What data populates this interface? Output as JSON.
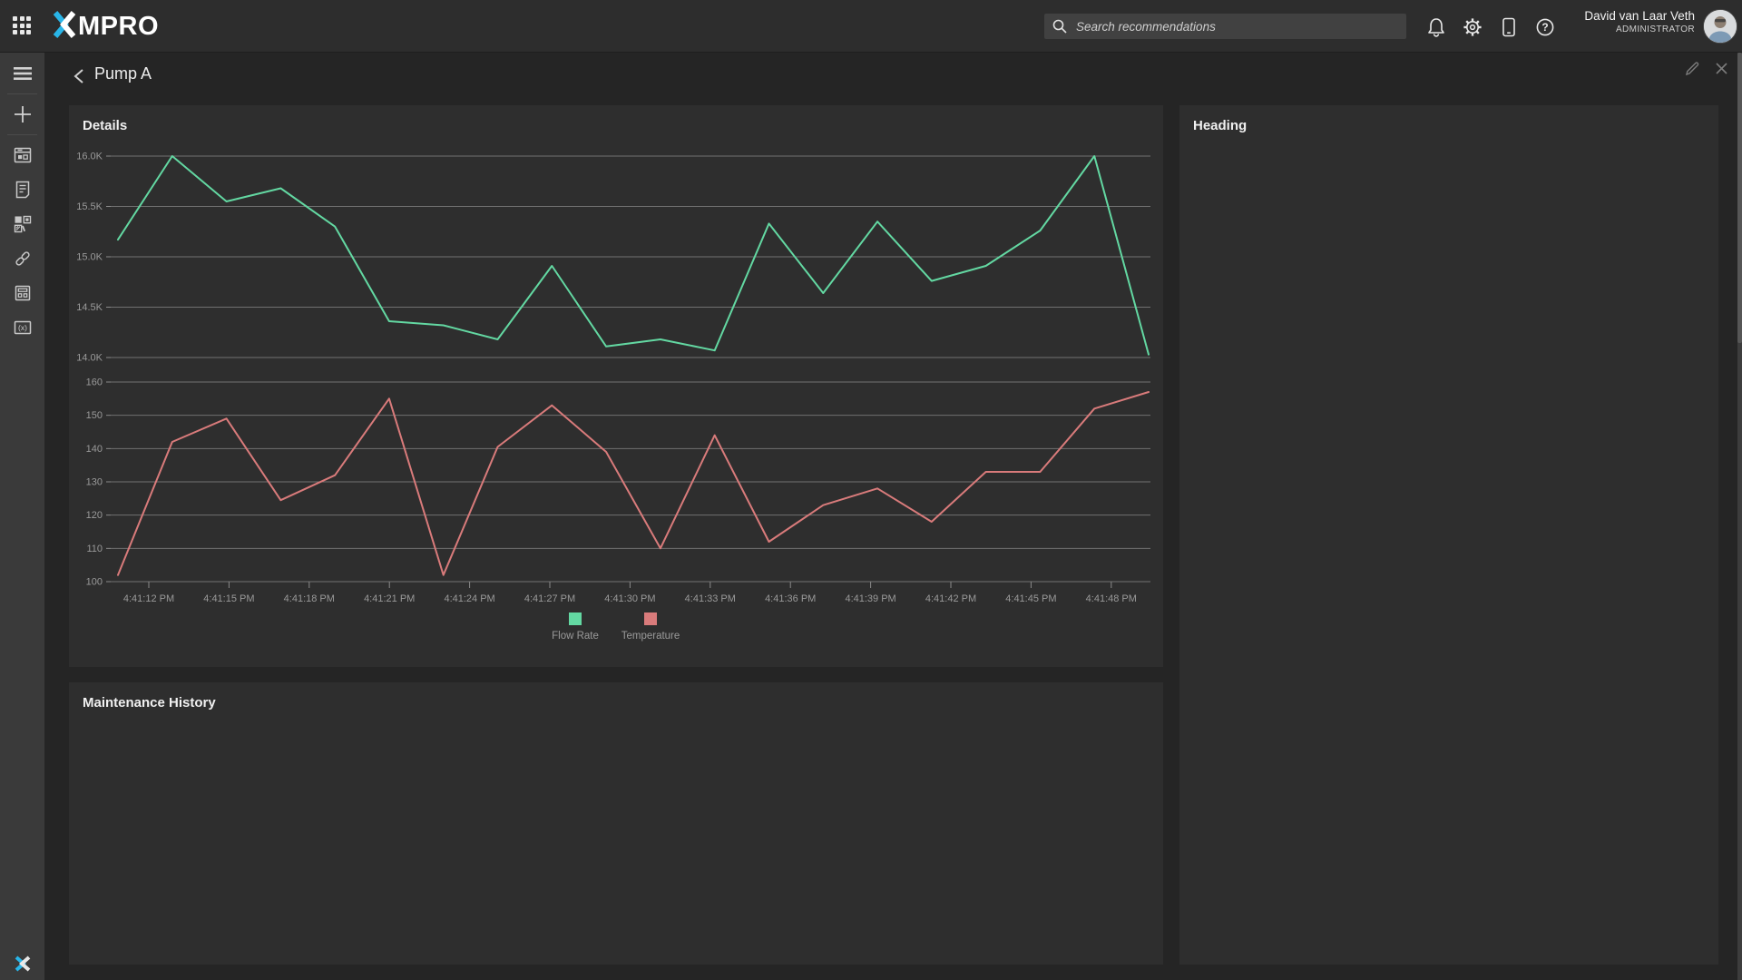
{
  "topbar": {
    "logo_text": "MPRO",
    "search_placeholder": "Search recommendations",
    "user": {
      "name": "David van Laar Veth",
      "role": "ADMINISTRATOR"
    },
    "icons": [
      "apps-grid",
      "notifications-bell",
      "settings-gear",
      "mobile-phone",
      "help"
    ]
  },
  "sidebar": {
    "icons": [
      "menu",
      "add",
      "dashboard",
      "form",
      "blocks",
      "link",
      "calculator",
      "variable"
    ],
    "footer_icon": "xmpro-x-mark"
  },
  "page": {
    "title": "Pump A"
  },
  "panels": {
    "details": {
      "title": "Details"
    },
    "heading": {
      "title": "Heading"
    },
    "maintenance": {
      "title": "Maintenance History"
    }
  },
  "chart_data": {
    "type": "line",
    "grid": true,
    "legend_position": "bottom",
    "x_labels": [
      "4:41:12 PM",
      "4:41:15 PM",
      "4:41:18 PM",
      "4:41:21 PM",
      "4:41:24 PM",
      "4:41:27 PM",
      "4:41:30 PM",
      "4:41:33 PM",
      "4:41:36 PM",
      "4:41:39 PM",
      "4:41:42 PM",
      "4:41:45 PM",
      "4:41:48 PM"
    ],
    "charts": [
      {
        "ylim": [
          14000,
          16000
        ],
        "ytick_labels": [
          "16.0K",
          "15.5K",
          "15.0K",
          "14.5K",
          "14.0K"
        ],
        "series": {
          "name": "Flow Rate",
          "color": "#63d8a2",
          "values": [
            15170,
            16000,
            15550,
            15680,
            15300,
            14360,
            14320,
            14180,
            14910,
            14110,
            14180,
            14070,
            15330,
            14640,
            15350,
            14760,
            14910,
            15260,
            16000,
            14030
          ]
        }
      },
      {
        "ylim": [
          100,
          160
        ],
        "ytick_labels": [
          "160",
          "150",
          "140",
          "130",
          "120",
          "110",
          "100"
        ],
        "series": {
          "name": "Temperature",
          "color": "#d97b7b",
          "values": [
            102,
            142,
            149,
            124.5,
            132,
            155,
            102,
            140.5,
            153,
            139,
            110,
            144,
            112,
            123,
            128,
            118,
            133,
            133,
            152,
            157
          ]
        }
      }
    ],
    "legend": [
      {
        "label": "Flow Rate",
        "color": "#63d8a2"
      },
      {
        "label": "Temperature",
        "color": "#d97b7b"
      }
    ]
  }
}
